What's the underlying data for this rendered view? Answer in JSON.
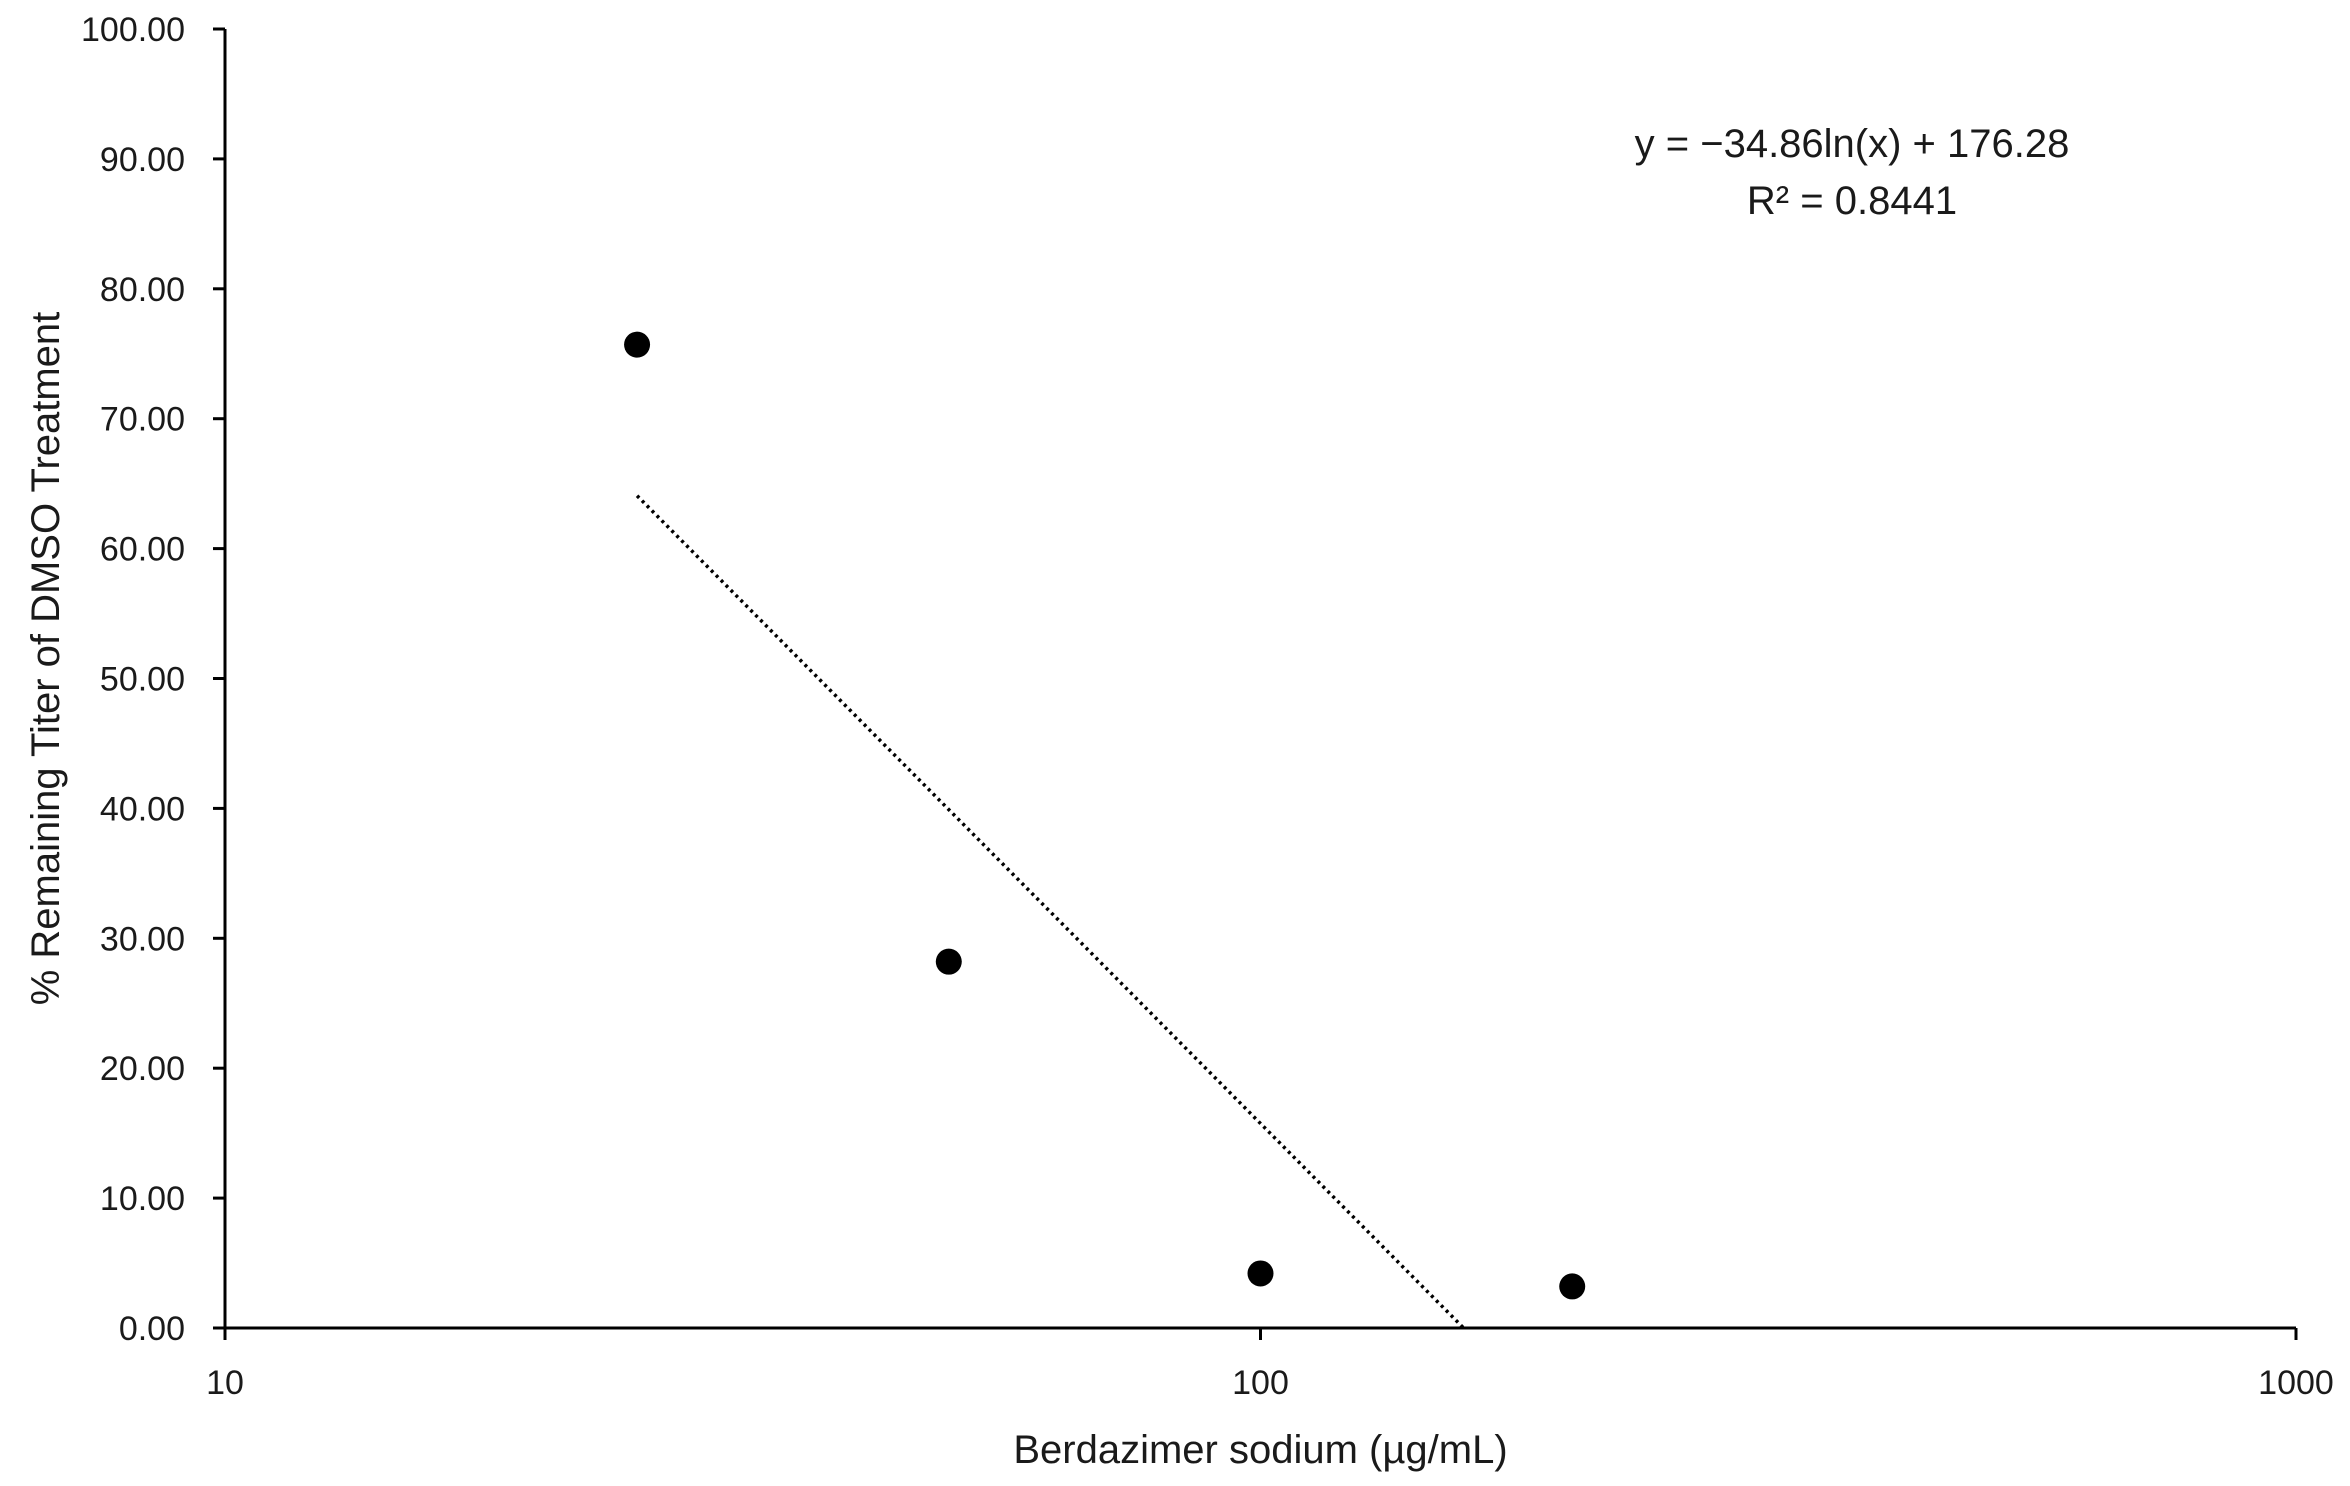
{
  "chart_data": {
    "type": "scatter",
    "title": "",
    "xlabel": "Berdazimer sodium (µg/mL)",
    "ylabel": "% Remaining Titer of DMSO Treatment",
    "x_scale": "log",
    "xlim": [
      10,
      1000
    ],
    "ylim": [
      0,
      100
    ],
    "x_ticks": [
      10,
      100,
      1000
    ],
    "x_tick_labels": [
      "10",
      "100",
      "1000"
    ],
    "y_ticks": [
      0,
      10,
      20,
      30,
      40,
      50,
      60,
      70,
      80,
      90,
      100
    ],
    "y_tick_labels": [
      "0.00",
      "10.00",
      "20.00",
      "30.00",
      "40.00",
      "50.00",
      "60.00",
      "70.00",
      "80.00",
      "90.00",
      "100.00"
    ],
    "grid": false,
    "legend": "none",
    "marker_color": "#000000",
    "series": [
      {
        "x": [
          25,
          50,
          100,
          200
        ],
        "y": [
          75.7,
          28.2,
          4.2,
          3.2
        ]
      }
    ],
    "trendline": {
      "type": "logarithmic",
      "style": "dotted",
      "color": "#000000",
      "a": -34.86,
      "b": 176.28,
      "x_range": [
        25,
        157
      ],
      "equation_label": "y = −34.86ln(x) + 176.28",
      "r2_label": "R² = 0.8441",
      "label_position": "top-right"
    }
  }
}
